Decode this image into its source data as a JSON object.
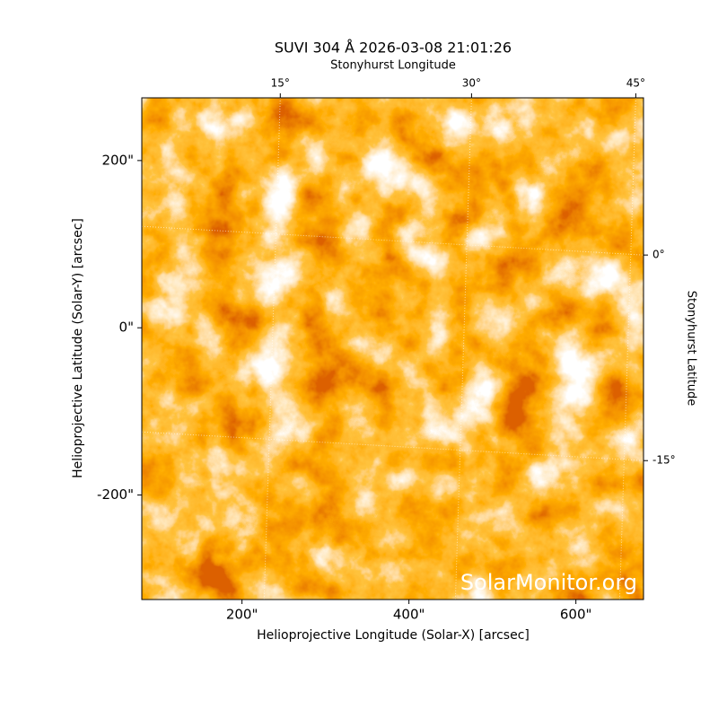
{
  "chart_data": {
    "type": "image",
    "title": "SUVI 304 Å 2026-03-08 21:01:26",
    "xlabel": "Helioprojective Longitude (Solar-X) [arcsec]",
    "ylabel": "Helioprojective Latitude (Solar-Y) [arcsec]",
    "x2label": "Stonyhurst Longitude",
    "y2label": "Stonyhurst Latitude",
    "watermark": "SolarMonitor.org",
    "xlim": [
      80,
      681
    ],
    "ylim": [
      -325,
      275
    ],
    "xticks": [
      {
        "value": 200,
        "label": "200\""
      },
      {
        "value": 400,
        "label": "400\""
      },
      {
        "value": 600,
        "label": "600\""
      }
    ],
    "yticks": [
      {
        "value": -200,
        "label": "-200\""
      },
      {
        "value": 0,
        "label": "0\""
      },
      {
        "value": 200,
        "label": "200\""
      }
    ],
    "x2ticks": [
      {
        "value": 15,
        "label": "15°"
      },
      {
        "value": 30,
        "label": "30°"
      },
      {
        "value": 45,
        "label": "45°"
      }
    ],
    "y2ticks": [
      {
        "value": 0,
        "label": "0°"
      },
      {
        "value": -15,
        "label": "-15°"
      }
    ],
    "grid": true
  }
}
